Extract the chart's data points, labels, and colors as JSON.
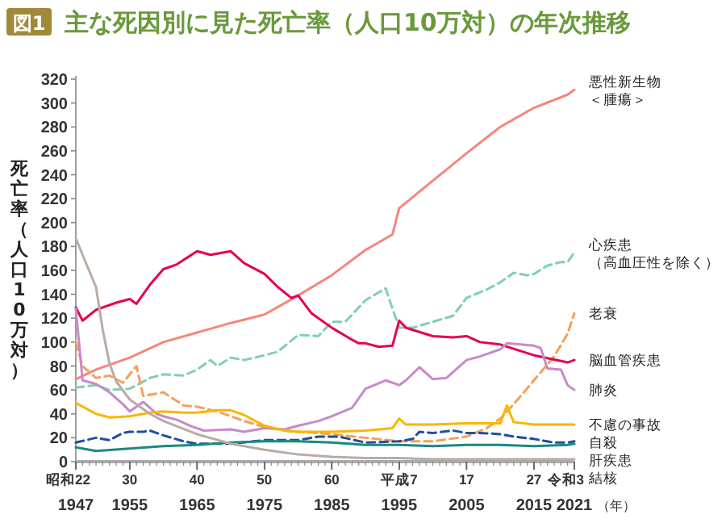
{
  "chart_data": {
    "type": "line",
    "title": "主な死因別に見た死亡率（人口10万対）の年次推移",
    "annotations": [
      "図1",
      "昭和22",
      "30",
      "40",
      "50",
      "60",
      "平成7",
      "17",
      "27",
      "令和3"
    ],
    "ylabel": "死亡率（人口10万対）",
    "xlabel": "（年）",
    "xlim": [
      1947,
      2021
    ],
    "ylim": [
      0,
      320
    ],
    "xticks": [
      1947,
      1955,
      1965,
      1975,
      1985,
      1995,
      2005,
      2015,
      2021
    ],
    "yticks": [
      0,
      20,
      40,
      60,
      80,
      100,
      120,
      140,
      160,
      180,
      200,
      220,
      240,
      260,
      280,
      300,
      320
    ],
    "grid": false,
    "legend": "right",
    "marker": "none",
    "series": [
      {
        "name": "悪性新生物＜腫瘍＞",
        "color": "#f4877a",
        "line_style": "solid",
        "x": [
          1947,
          1950,
          1955,
          1960,
          1965,
          1970,
          1975,
          1980,
          1985,
          1990,
          1994,
          1995,
          2000,
          2005,
          2010,
          2015,
          2020,
          2021
        ],
        "values": [
          69,
          77,
          87,
          100,
          108,
          116,
          123,
          139,
          156,
          177,
          190,
          212,
          235,
          258,
          280,
          296,
          307,
          311
        ]
      },
      {
        "name": "心疾患（高血圧性を除く）",
        "color": "#7fcfb8",
        "line_style": "dashed",
        "x": [
          1947,
          1950,
          1952,
          1955,
          1958,
          1960,
          1963,
          1965,
          1967,
          1968,
          1970,
          1972,
          1975,
          1977,
          1980,
          1983,
          1985,
          1987,
          1990,
          1993,
          1994,
          1995,
          1997,
          2000,
          2003,
          2005,
          2008,
          2010,
          2012,
          2014,
          2015,
          2017,
          2019,
          2020,
          2021
        ],
        "values": [
          62,
          64,
          60,
          61,
          70,
          73,
          72,
          77,
          85,
          80,
          87,
          85,
          89,
          92,
          106,
          105,
          117,
          117,
          135,
          145,
          128,
          112,
          112,
          117,
          122,
          137,
          144,
          150,
          158,
          156,
          157,
          164,
          167,
          167,
          175
        ]
      },
      {
        "name": "老衰",
        "color": "#f5a05a",
        "line_style": "dashed",
        "x": [
          1947,
          1948,
          1950,
          1952,
          1954,
          1956,
          1957,
          1960,
          1963,
          1965,
          1968,
          1970,
          1972,
          1975,
          1978,
          1980,
          1985,
          1990,
          1995,
          2000,
          2005,
          2008,
          2010,
          2012,
          2015,
          2018,
          2020,
          2021
        ],
        "values": [
          100,
          80,
          70,
          72,
          66,
          80,
          55,
          58,
          47,
          46,
          42,
          38,
          34,
          29,
          26,
          25,
          23,
          20,
          17,
          17,
          21,
          28,
          36,
          48,
          68,
          88,
          107,
          124
        ]
      },
      {
        "name": "脳血管疾患",
        "color": "#e5004f",
        "line_style": "solid",
        "x": [
          1947,
          1948,
          1950,
          1953,
          1955,
          1956,
          1958,
          1960,
          1962,
          1965,
          1967,
          1970,
          1972,
          1975,
          1977,
          1979,
          1980,
          1982,
          1985,
          1988,
          1989,
          1990,
          1992,
          1994,
          1995,
          1996,
          2000,
          2003,
          2005,
          2007,
          2010,
          2015,
          2020,
          2021
        ],
        "values": [
          129,
          118,
          127,
          133,
          136,
          132,
          148,
          161,
          165,
          176,
          173,
          176,
          166,
          157,
          146,
          137,
          139,
          124,
          112,
          102,
          99,
          99,
          96,
          97,
          118,
          112,
          105,
          104,
          105,
          100,
          98,
          89,
          83,
          85
        ]
      },
      {
        "name": "肺炎",
        "color": "#c989c9",
        "line_style": "solid",
        "x": [
          1947,
          1948,
          1950,
          1952,
          1954,
          1955,
          1957,
          1959,
          1960,
          1962,
          1964,
          1966,
          1970,
          1972,
          1975,
          1978,
          1980,
          1983,
          1985,
          1988,
          1990,
          1993,
          1995,
          1996,
          1998,
          2000,
          2002,
          2005,
          2007,
          2010,
          2011,
          2015,
          2016,
          2017,
          2019,
          2020,
          2021
        ],
        "values": [
          128,
          68,
          65,
          58,
          48,
          42,
          50,
          40,
          38,
          35,
          30,
          26,
          27,
          25,
          28,
          27,
          30,
          34,
          38,
          45,
          61,
          68,
          64,
          68,
          79,
          69,
          70,
          85,
          88,
          94,
          99,
          97,
          95,
          78,
          77,
          64,
          60
        ]
      },
      {
        "name": "不慮の事故",
        "color": "#f7b800",
        "line_style": "solid",
        "x": [
          1947,
          1950,
          1952,
          1955,
          1958,
          1960,
          1963,
          1965,
          1968,
          1970,
          1972,
          1975,
          1978,
          1980,
          1985,
          1990,
          1994,
          1995,
          1996,
          2000,
          2005,
          2010,
          2011,
          2012,
          2015,
          2020,
          2021
        ],
        "values": [
          49,
          40,
          37,
          38,
          41,
          42,
          41,
          41,
          43,
          43,
          39,
          30,
          26,
          25,
          25,
          26,
          28,
          36,
          31,
          31,
          32,
          32,
          47,
          33,
          31,
          31,
          31
        ]
      },
      {
        "name": "自殺",
        "color": "#1f4fa0",
        "line_style": "dashed",
        "x": [
          1947,
          1950,
          1952,
          1954,
          1955,
          1957,
          1958,
          1960,
          1963,
          1965,
          1970,
          1975,
          1980,
          1983,
          1986,
          1990,
          1995,
          1997,
          1998,
          2000,
          2003,
          2005,
          2007,
          2010,
          2012,
          2015,
          2018,
          2020,
          2021
        ],
        "values": [
          16,
          20,
          18,
          24,
          25,
          25,
          26,
          22,
          17,
          15,
          15,
          18,
          18,
          21,
          21,
          16,
          17,
          19,
          25,
          24,
          26,
          24,
          24,
          23,
          21,
          19,
          16,
          16,
          17
        ]
      },
      {
        "name": "肝疾患",
        "color": "#1a8a80",
        "line_style": "solid",
        "x": [
          1947,
          1950,
          1955,
          1960,
          1965,
          1970,
          1975,
          1980,
          1985,
          1990,
          1995,
          2000,
          2005,
          2010,
          2015,
          2020,
          2021
        ],
        "values": [
          12,
          9,
          11,
          13,
          14,
          16,
          17,
          17,
          16,
          14,
          14,
          13,
          14,
          14,
          13,
          14,
          15
        ]
      },
      {
        "name": "結核",
        "color": "#b8aca4",
        "line_style": "solid",
        "x": [
          1947,
          1948,
          1950,
          1951,
          1952,
          1953,
          1955,
          1958,
          1960,
          1965,
          1970,
          1975,
          1980,
          1985,
          1990,
          1995,
          2000,
          2005,
          2010,
          2015,
          2021
        ],
        "values": [
          187,
          173,
          146,
          110,
          82,
          67,
          52,
          40,
          34,
          23,
          15,
          10,
          6,
          4,
          3,
          3,
          2,
          2,
          2,
          2,
          2
        ]
      }
    ]
  }
}
